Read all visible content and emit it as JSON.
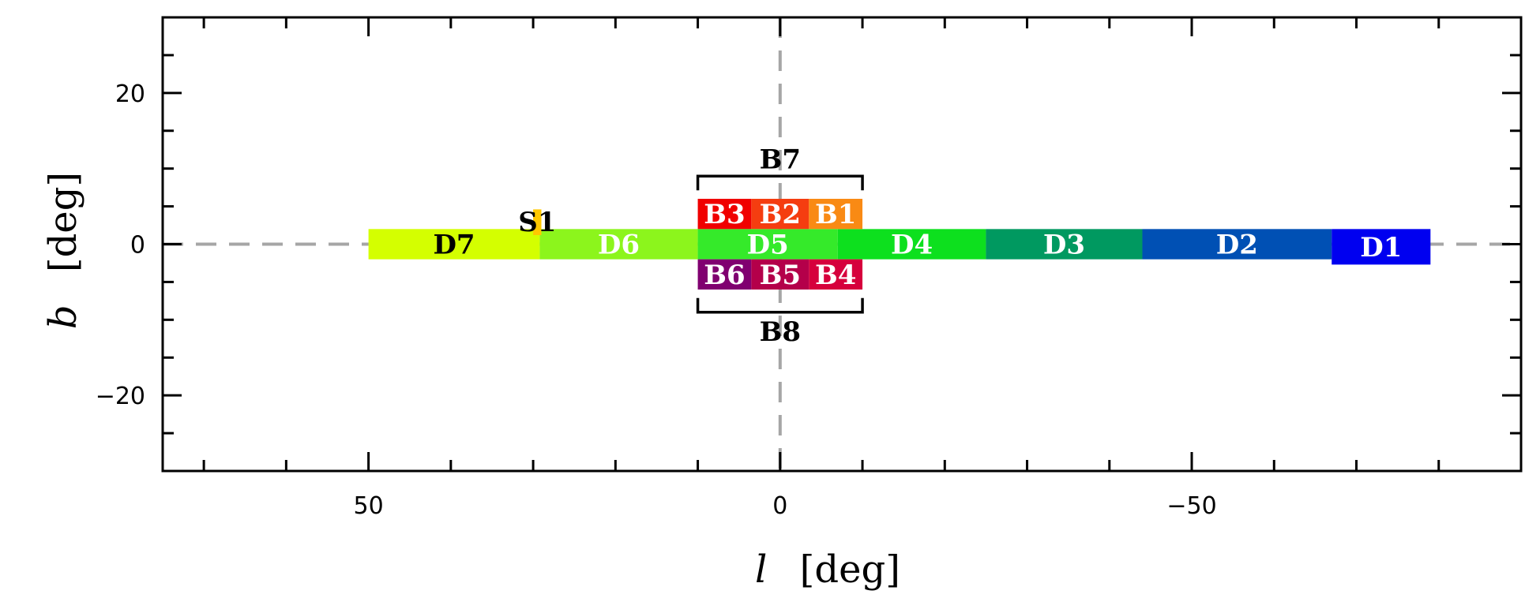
{
  "chart_data": {
    "type": "area",
    "title": "",
    "xlabel": "l",
    "ylabel": "b",
    "unit_label": "[deg]",
    "xlim": [
      75,
      -90
    ],
    "ylim": [
      -30,
      30
    ],
    "x_inverted": true,
    "xticks": [
      {
        "v": 50,
        "label": "50"
      },
      {
        "v": 0,
        "label": "0"
      },
      {
        "v": -50,
        "label": "−50"
      }
    ],
    "yticks": [
      {
        "v": 20,
        "label": "20"
      },
      {
        "v": 0,
        "label": "0"
      },
      {
        "v": -20,
        "label": "−20"
      }
    ],
    "reference_lines": [
      {
        "axis": "x",
        "value": 0
      },
      {
        "axis": "y",
        "value": 0
      }
    ],
    "regions": [
      {
        "name": "D7",
        "l_range": [
          29.2,
          50
        ],
        "b_range": [
          -2,
          2
        ],
        "color": "#d4ff00",
        "label_color": "#000000"
      },
      {
        "name": "D6",
        "l_range": [
          10,
          29.2
        ],
        "b_range": [
          -2,
          2
        ],
        "color": "#8cf51c",
        "label_color": "#ffffff"
      },
      {
        "name": "D5",
        "l_range": [
          -7,
          10
        ],
        "b_range": [
          -2,
          2
        ],
        "color": "#35ea2a",
        "label_color": "#ffffff"
      },
      {
        "name": "D4",
        "l_range": [
          -25,
          -7
        ],
        "b_range": [
          -2,
          2
        ],
        "color": "#0de01e",
        "label_color": "#ffffff"
      },
      {
        "name": "D3",
        "l_range": [
          -44,
          -25
        ],
        "b_range": [
          -2,
          2
        ],
        "color": "#009960",
        "label_color": "#ffffff"
      },
      {
        "name": "D2",
        "l_range": [
          -67,
          -44
        ],
        "b_range": [
          -2,
          2
        ],
        "color": "#0050b4",
        "label_color": "#ffffff"
      },
      {
        "name": "D1",
        "l_range": [
          -79,
          -67
        ],
        "b_range": [
          -2.7,
          2
        ],
        "color": "#0000f0",
        "label_color": "#ffffff"
      },
      {
        "name": "B3",
        "l_range": [
          3.5,
          10
        ],
        "b_range": [
          2,
          6
        ],
        "color": "#f00000",
        "label_color": "#ffffff"
      },
      {
        "name": "B2",
        "l_range": [
          -3.5,
          3.5
        ],
        "b_range": [
          2,
          6
        ],
        "color": "#f53d10",
        "label_color": "#ffffff"
      },
      {
        "name": "B1",
        "l_range": [
          -10,
          -3.5
        ],
        "b_range": [
          2,
          6
        ],
        "color": "#f98a14",
        "label_color": "#ffffff"
      },
      {
        "name": "B6",
        "l_range": [
          3.5,
          10
        ],
        "b_range": [
          -6,
          -2
        ],
        "color": "#800070",
        "label_color": "#ffffff"
      },
      {
        "name": "B5",
        "l_range": [
          -3.5,
          3.5
        ],
        "b_range": [
          -6,
          -2
        ],
        "color": "#b4004a",
        "label_color": "#ffffff"
      },
      {
        "name": "B4",
        "l_range": [
          -10,
          -3.5
        ],
        "b_range": [
          -6,
          -2
        ],
        "color": "#d6003c",
        "label_color": "#ffffff"
      },
      {
        "name": "S1",
        "l_range": [
          29,
          30
        ],
        "b_range": [
          1.2,
          4.6
        ],
        "color": "#ffc800",
        "label_color": "#000000"
      }
    ],
    "brackets": [
      {
        "name": "B7",
        "l_range": [
          10,
          -10
        ],
        "b": 9,
        "side": "above"
      },
      {
        "name": "B8",
        "l_range": [
          10,
          -10
        ],
        "b": -9,
        "side": "below"
      }
    ]
  }
}
